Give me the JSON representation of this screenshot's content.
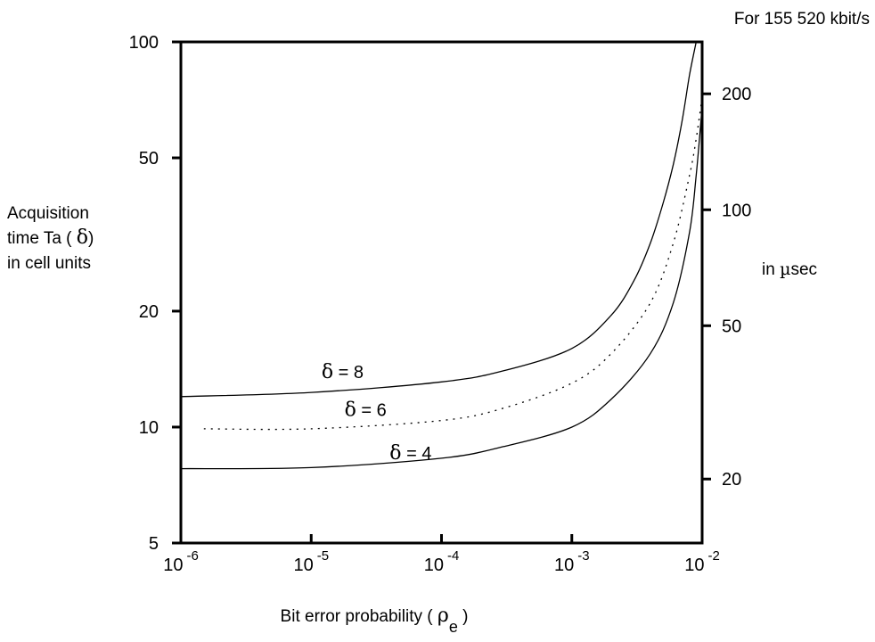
{
  "chart_data": {
    "type": "line",
    "title": "",
    "header_right": "For 155 520 kbit/s",
    "xlabel": {
      "text": "Bit error probability ( ",
      "symbol": "ρ",
      "sub": "e",
      "close": " )"
    },
    "ylabel_lines": [
      {
        "text": "Acquisition"
      },
      {
        "text": "time Ta ( ",
        "symbol": "δ",
        "close": ")"
      },
      {
        "text": "in cell units"
      }
    ],
    "y2label": {
      "pre": "in ",
      "symbol": "µ",
      "post": "sec"
    },
    "x_scale": "log",
    "y_scale": "log",
    "xlim": [
      1e-06,
      0.01
    ],
    "ylim": [
      5,
      100
    ],
    "x_ticks": [
      {
        "value": 1e-06,
        "base": "10",
        "exp": "-6"
      },
      {
        "value": 1e-05,
        "base": "10",
        "exp": "-5"
      },
      {
        "value": 0.0001,
        "base": "10",
        "exp": "-4"
      },
      {
        "value": 0.001,
        "base": "10",
        "exp": "-3"
      },
      {
        "value": 0.01,
        "base": "10",
        "exp": "-2"
      }
    ],
    "y_ticks": [
      {
        "value": 5,
        "label": "5"
      },
      {
        "value": 10,
        "label": "10"
      },
      {
        "value": 20,
        "label": "20"
      },
      {
        "value": 50,
        "label": "50"
      },
      {
        "value": 100,
        "label": "100"
      }
    ],
    "y2_ticks": [
      {
        "value": 7.33,
        "label": "20"
      },
      {
        "value": 18.33,
        "label": "50"
      },
      {
        "value": 36.66,
        "label": "100"
      },
      {
        "value": 73.32,
        "label": "200"
      }
    ],
    "grid": false,
    "series": [
      {
        "name": "δ = 8",
        "style": "solid",
        "label": {
          "symbol": "δ",
          "text": " = 8",
          "x": 1.2e-05,
          "y": 13.4
        },
        "x": [
          1e-06,
          1e-05,
          0.0001,
          0.0003,
          0.001,
          0.002,
          0.003,
          0.004,
          0.005,
          0.006,
          0.007,
          0.008,
          0.009
        ],
        "y": [
          12,
          12.3,
          13.1,
          14.0,
          16.0,
          19.5,
          24.0,
          30.0,
          38.0,
          48.0,
          62.0,
          82.0,
          100
        ]
      },
      {
        "name": "δ = 6",
        "style": "dotted",
        "label": {
          "symbol": "δ",
          "text": " = 6",
          "x": 1.8e-05,
          "y": 10.7
        },
        "x": [
          1.5e-06,
          1e-05,
          0.0001,
          0.0003,
          0.001,
          0.002,
          0.004,
          0.006,
          0.008,
          0.009,
          0.01
        ],
        "y": [
          9.9,
          9.9,
          10.4,
          11.2,
          13.0,
          15.5,
          21.0,
          30.0,
          45.0,
          56.0,
          72.0
        ]
      },
      {
        "name": "δ = 4",
        "style": "solid",
        "label": {
          "symbol": "δ",
          "text": " = 4",
          "x": 4e-05,
          "y": 8.25
        },
        "x": [
          1e-06,
          1e-05,
          0.0001,
          0.0003,
          0.001,
          0.002,
          0.004,
          0.006,
          0.008,
          0.009,
          0.01
        ],
        "y": [
          7.8,
          7.85,
          8.3,
          8.9,
          10.0,
          11.8,
          15.5,
          21.0,
          32.0,
          45.0,
          68.0
        ]
      }
    ]
  }
}
